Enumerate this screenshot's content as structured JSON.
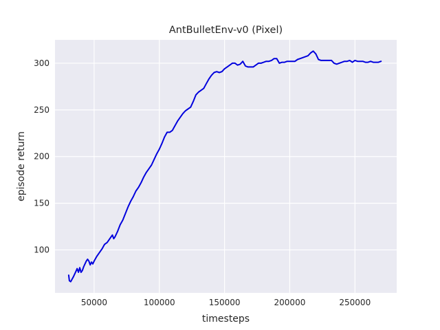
{
  "chart_data": {
    "type": "line",
    "title": "AntBulletEnv-v0 (Pixel)",
    "xlabel": "timesteps",
    "ylabel": "episode return",
    "xlim": [
      20000,
      282000
    ],
    "ylim": [
      54,
      325
    ],
    "xticks": [
      50000,
      100000,
      150000,
      200000,
      250000
    ],
    "xtick_labels": [
      "50000",
      "100000",
      "150000",
      "200000",
      "250000"
    ],
    "yticks": [
      100,
      150,
      200,
      250,
      300
    ],
    "ytick_labels": [
      "100",
      "150",
      "200",
      "250",
      "300"
    ],
    "grid": true,
    "colors": {
      "background": "#eaeaf2",
      "grid": "#ffffff",
      "line": "#0000dd"
    },
    "series": [
      {
        "name": "",
        "x": [
          30500,
          31000,
          32000,
          34000,
          36000,
          37000,
          38000,
          39000,
          40000,
          41000,
          42000,
          44000,
          45000,
          46000,
          47000,
          48000,
          49000,
          50000,
          52000,
          54000,
          56000,
          58000,
          60000,
          62000,
          64000,
          65000,
          66000,
          68000,
          70000,
          72000,
          74000,
          76000,
          78000,
          80000,
          82000,
          84000,
          86000,
          88000,
          90000,
          92000,
          94000,
          96000,
          98000,
          100000,
          102000,
          104000,
          106000,
          108000,
          110000,
          112000,
          114000,
          116000,
          118000,
          120000,
          122000,
          124000,
          126000,
          128000,
          130000,
          132000,
          134000,
          136000,
          138000,
          140000,
          142000,
          144000,
          146000,
          148000,
          150000,
          152000,
          154000,
          156000,
          158000,
          160000,
          162000,
          164000,
          166000,
          168000,
          170000,
          172000,
          174000,
          176000,
          178000,
          180000,
          182000,
          184000,
          186000,
          188000,
          190000,
          192000,
          194000,
          196000,
          198000,
          200000,
          202000,
          204000,
          206000,
          208000,
          210000,
          212000,
          214000,
          216000,
          218000,
          220000,
          222000,
          224000,
          226000,
          228000,
          230000,
          232000,
          234000,
          236000,
          238000,
          240000,
          242000,
          244000,
          246000,
          247000,
          248000,
          249000,
          250000,
          252000,
          254000,
          256000,
          258000,
          260000,
          262000,
          264000,
          266000,
          268000,
          270000
        ],
        "y": [
          73,
          67,
          66,
          71,
          77,
          80,
          76,
          81,
          76,
          78,
          82,
          88,
          90,
          88,
          84,
          87,
          85,
          88,
          93,
          97,
          101,
          106,
          108,
          112,
          116,
          112,
          114,
          120,
          127,
          132,
          139,
          146,
          152,
          157,
          163,
          167,
          172,
          178,
          183,
          187,
          191,
          197,
          203,
          208,
          214,
          221,
          226,
          226,
          228,
          233,
          238,
          242,
          246,
          249,
          251,
          253,
          259,
          266,
          269,
          271,
          273,
          278,
          283,
          287,
          290,
          291,
          290,
          291,
          294,
          296,
          298,
          300,
          300,
          298,
          299,
          302,
          297,
          296,
          296,
          296,
          298,
          300,
          300,
          301,
          302,
          302,
          303,
          305,
          305,
          300,
          301,
          301,
          302,
          302,
          302,
          302,
          304,
          305,
          306,
          307,
          308,
          311,
          313,
          310,
          304,
          303,
          303,
          303,
          303,
          303,
          300,
          299,
          300,
          301,
          302,
          302,
          303,
          302,
          301,
          302,
          303,
          302,
          302,
          302,
          301,
          301,
          302,
          301,
          301,
          301,
          302
        ]
      }
    ]
  }
}
